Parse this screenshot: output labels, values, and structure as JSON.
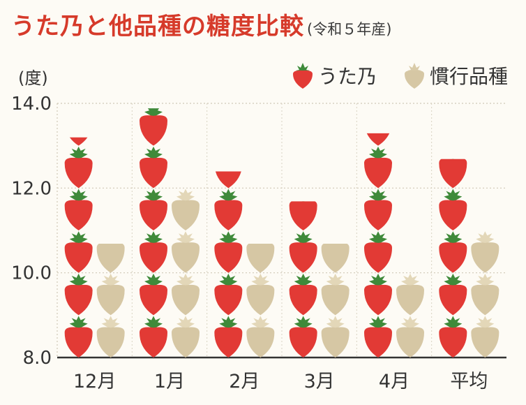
{
  "header": {
    "title": "うた乃と他品種の糖度比較",
    "subtitle": "(令和５年産)"
  },
  "chart_data": {
    "type": "bar",
    "title": "うた乃と他品種の糖度比較",
    "subtitle": "(令和５年産)",
    "ylabel": "(度)",
    "ylim": [
      8.0,
      14.0
    ],
    "yticks": [
      "8.0",
      "10.0",
      "12.0",
      "14.0"
    ],
    "categories": [
      "12月",
      "1月",
      "2月",
      "3月",
      "4月",
      "平均"
    ],
    "series": [
      {
        "name": "うた乃",
        "values": [
          13.2,
          13.9,
          12.4,
          11.7,
          13.3,
          12.7
        ],
        "color": "#e23a35",
        "icon": "strawberry-icon"
      },
      {
        "name": "慣行品種",
        "values": [
          10.7,
          12.0,
          10.7,
          10.7,
          10.0,
          11.0
        ],
        "color": "#d6c7a4",
        "icon": "strawberry-icon"
      }
    ],
    "grid": true,
    "legend": "top-right"
  }
}
